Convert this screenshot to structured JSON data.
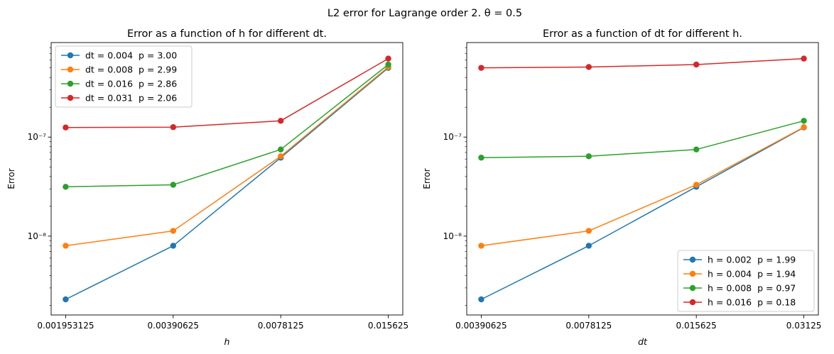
{
  "figure": {
    "suptitle": "L2 error for Lagrange order 2. θ = 0.5"
  },
  "chart_data": [
    {
      "type": "line",
      "title": "Error as a function of h for different dt.",
      "xlabel": "h",
      "ylabel": "Error",
      "xscale": "log2",
      "yscale": "log",
      "x": [
        0.001953125,
        0.00390625,
        0.0078125,
        0.015625
      ],
      "xtick_labels": [
        "0.001953125",
        "0.00390625",
        "0.0078125",
        "0.015625"
      ],
      "ytick_values": [
        1e-08,
        1e-07
      ],
      "ytick_labels": [
        "10⁻⁸",
        "10⁻⁷"
      ],
      "ylim": [
        1.6e-09,
        9e-07
      ],
      "legend_position": "upper-left",
      "grid": false,
      "series": [
        {
          "name": "dt = 0.004  p = 3.00",
          "color": "#1f77b4",
          "values": [
            2.3e-09,
            8e-09,
            6.2e-08,
            5e-07
          ]
        },
        {
          "name": "dt = 0.008  p = 2.99",
          "color": "#ff7f0e",
          "values": [
            8e-09,
            1.13e-08,
            6.4e-08,
            5.1e-07
          ]
        },
        {
          "name": "dt = 0.016  p = 2.86",
          "color": "#2ca02c",
          "values": [
            3.15e-08,
            3.3e-08,
            7.5e-08,
            5.4e-07
          ]
        },
        {
          "name": "dt = 0.031  p = 2.06",
          "color": "#d62728",
          "values": [
            1.25e-07,
            1.26e-07,
            1.46e-07,
            6.2e-07
          ]
        }
      ]
    },
    {
      "type": "line",
      "title": "Error as a function of dt for different h.",
      "xlabel": "dt",
      "ylabel": "Error",
      "xscale": "log2",
      "yscale": "log",
      "x": [
        0.00390625,
        0.0078125,
        0.015625,
        0.03125
      ],
      "xtick_labels": [
        "0.00390625",
        "0.0078125",
        "0.015625",
        "0.03125"
      ],
      "ytick_values": [
        1e-08,
        1e-07
      ],
      "ytick_labels": [
        "10⁻⁸",
        "10⁻⁷"
      ],
      "ylim": [
        1.6e-09,
        9e-07
      ],
      "legend_position": "lower-right",
      "grid": false,
      "series": [
        {
          "name": "h = 0.002  p = 1.99",
          "color": "#1f77b4",
          "values": [
            2.3e-09,
            8e-09,
            3.15e-08,
            1.25e-07
          ]
        },
        {
          "name": "h = 0.004  p = 1.94",
          "color": "#ff7f0e",
          "values": [
            8e-09,
            1.13e-08,
            3.3e-08,
            1.26e-07
          ]
        },
        {
          "name": "h = 0.008  p = 0.97",
          "color": "#2ca02c",
          "values": [
            6.2e-08,
            6.4e-08,
            7.5e-08,
            1.46e-07
          ]
        },
        {
          "name": "h = 0.016  p = 0.18",
          "color": "#d62728",
          "values": [
            5e-07,
            5.1e-07,
            5.4e-07,
            6.2e-07
          ]
        }
      ]
    }
  ]
}
